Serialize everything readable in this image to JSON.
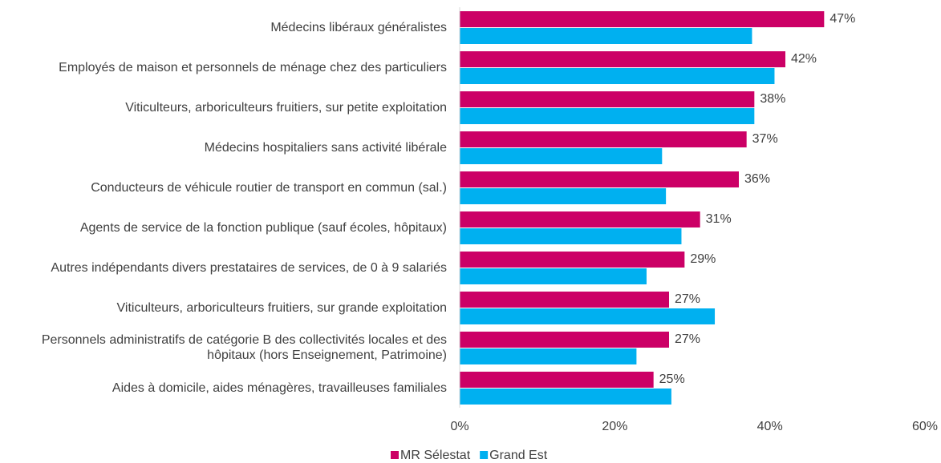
{
  "chart_data": {
    "type": "bar",
    "orientation": "horizontal",
    "categories": [
      "Médecins libéraux généralistes",
      "Employés de maison et personnels de ménage chez des particuliers",
      "Viticulteurs, arboriculteurs fruitiers, sur petite exploitation",
      "Médecins hospitaliers sans activité libérale",
      "Conducteurs de véhicule routier de transport en commun (sal.)",
      "Agents de service de la fonction publique (sauf écoles, hôpitaux)",
      "Autres indépendants divers prestataires de services, de 0 à 9 salariés",
      "Viticulteurs, arboriculteurs fruitiers, sur grande exploitation",
      "Personnels administratifs de catégorie B des collectivités locales et des hôpitaux (hors Enseignement, Patrimoine)",
      "Aides à domicile, aides ménagères, travailleuses familiales"
    ],
    "series": [
      {
        "name": "MR Sélestat",
        "color": "#cc0066",
        "values": [
          47,
          42,
          38,
          37,
          36,
          31,
          29,
          27,
          27,
          25
        ],
        "value_labels": [
          "47%",
          "42%",
          "38%",
          "37%",
          "36%",
          "31%",
          "29%",
          "27%",
          "27%",
          "25%"
        ]
      },
      {
        "name": "Grand Est",
        "color": "#00b0f0",
        "values": [
          37.7,
          40.6,
          38,
          26.1,
          26.6,
          28.6,
          24.1,
          32.9,
          22.8,
          27.3
        ]
      }
    ],
    "xlim": [
      0,
      60
    ],
    "xticks": [
      {
        "value": 0,
        "label": "0%"
      },
      {
        "value": 20,
        "label": "20%"
      },
      {
        "value": 40,
        "label": "40%"
      },
      {
        "value": 60,
        "label": "60%"
      }
    ],
    "legend": "bottom"
  }
}
